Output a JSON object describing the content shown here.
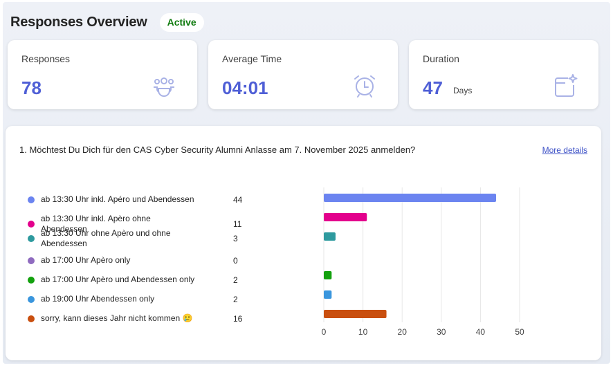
{
  "header": {
    "title": "Responses Overview",
    "status": "Active"
  },
  "stats": [
    {
      "label": "Responses",
      "value": "78",
      "unit": "",
      "icon": "people-group-icon"
    },
    {
      "label": "Average Time",
      "value": "04:01",
      "unit": "",
      "icon": "alarm-clock-icon"
    },
    {
      "label": "Duration",
      "value": "47",
      "unit": "Days",
      "icon": "calendar-sparkle-icon"
    }
  ],
  "question": {
    "text": "1. Möchtest Du Dich für den CAS Cyber Security Alumni Anlasse am 7. November 2025 anmelden?",
    "more_details": "More details"
  },
  "chart_data": {
    "type": "bar",
    "orientation": "horizontal",
    "categories": [
      "ab 13:30 Uhr inkl. Apéro und Abendessen",
      "ab 13:30 Uhr inkl. Apèro ohne Abendessen",
      "ab 13:30 Uhr ohne Apèro und ohne Abendessen",
      "ab 17:00 Uhr Apèro only",
      "ab 17:00 Uhr Apèro und Abendessen only",
      "ab 19:00 Uhr Abendessen only",
      "sorry, kann dieses Jahr nicht kommen 🥲"
    ],
    "values": [
      44,
      11,
      3,
      0,
      2,
      2,
      16
    ],
    "colors": [
      "#6b84f0",
      "#e3008c",
      "#2e9a9e",
      "#8f6bbf",
      "#13a10e",
      "#3a96dd",
      "#c94f0f"
    ],
    "xlim": [
      0,
      50
    ],
    "xticks": [
      "0",
      "10",
      "20",
      "30",
      "40",
      "50"
    ],
    "grid": true,
    "title": "",
    "xlabel": "",
    "ylabel": ""
  }
}
